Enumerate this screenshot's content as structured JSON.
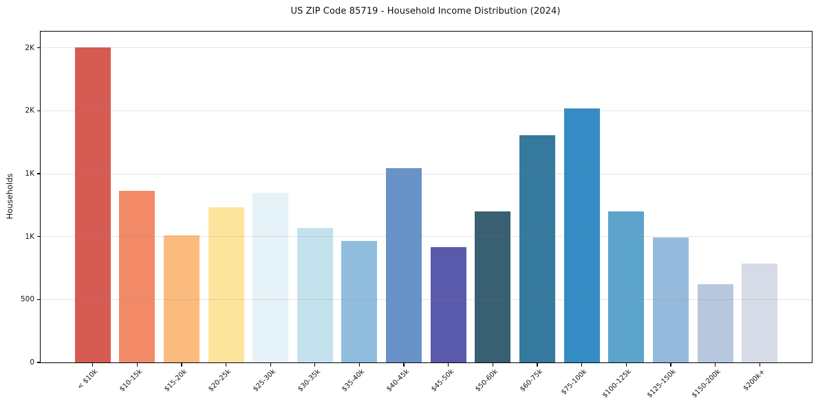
{
  "title": "US ZIP Code 85719 - Household Income Distribution (2024)",
  "chart_data": {
    "type": "bar",
    "title": "US ZIP Code 85719 - Household Income Distribution (2024)",
    "xlabel": "",
    "ylabel": "Households",
    "categories": [
      "< $10k",
      "$10-15k",
      "$15-20k",
      "$20-25k",
      "$25-30k",
      "$30-35k",
      "$35-40k",
      "$40-45k",
      "$45-50k",
      "$50-60k",
      "$60-75k",
      "$75-100k",
      "$100-125k",
      "$125-150k",
      "$150-200k",
      "$200k+"
    ],
    "values": [
      2505,
      1365,
      1012,
      1234,
      1350,
      1068,
      966,
      1545,
      916,
      1203,
      1807,
      2017,
      1203,
      995,
      620,
      786
    ],
    "bar_colors": [
      "#d65b53",
      "#f28a68",
      "#fbbb7e",
      "#fde49d",
      "#e5f2f8",
      "#c3e2ee",
      "#90bddd",
      "#6893c8",
      "#5a5aad",
      "#385f72",
      "#35799e",
      "#358bc4",
      "#5ca4cb",
      "#95badb",
      "#b7c8de",
      "#d7dbe8"
    ],
    "ylim": [
      0,
      2630
    ],
    "yticks": [
      {
        "value": 0,
        "label": "0"
      },
      {
        "value": 500,
        "label": "500"
      },
      {
        "value": 1000,
        "label": "1K"
      },
      {
        "value": 1500,
        "label": "1K"
      },
      {
        "value": 2000,
        "label": "2K"
      },
      {
        "value": 2500,
        "label": "2K"
      }
    ],
    "grid": "horizontal",
    "legend": "none",
    "xtick_rotation": 45
  },
  "colors": {
    "background": "#ffffff",
    "spine": "#000000",
    "grid": "#e2e2e2",
    "text": "#111111"
  }
}
